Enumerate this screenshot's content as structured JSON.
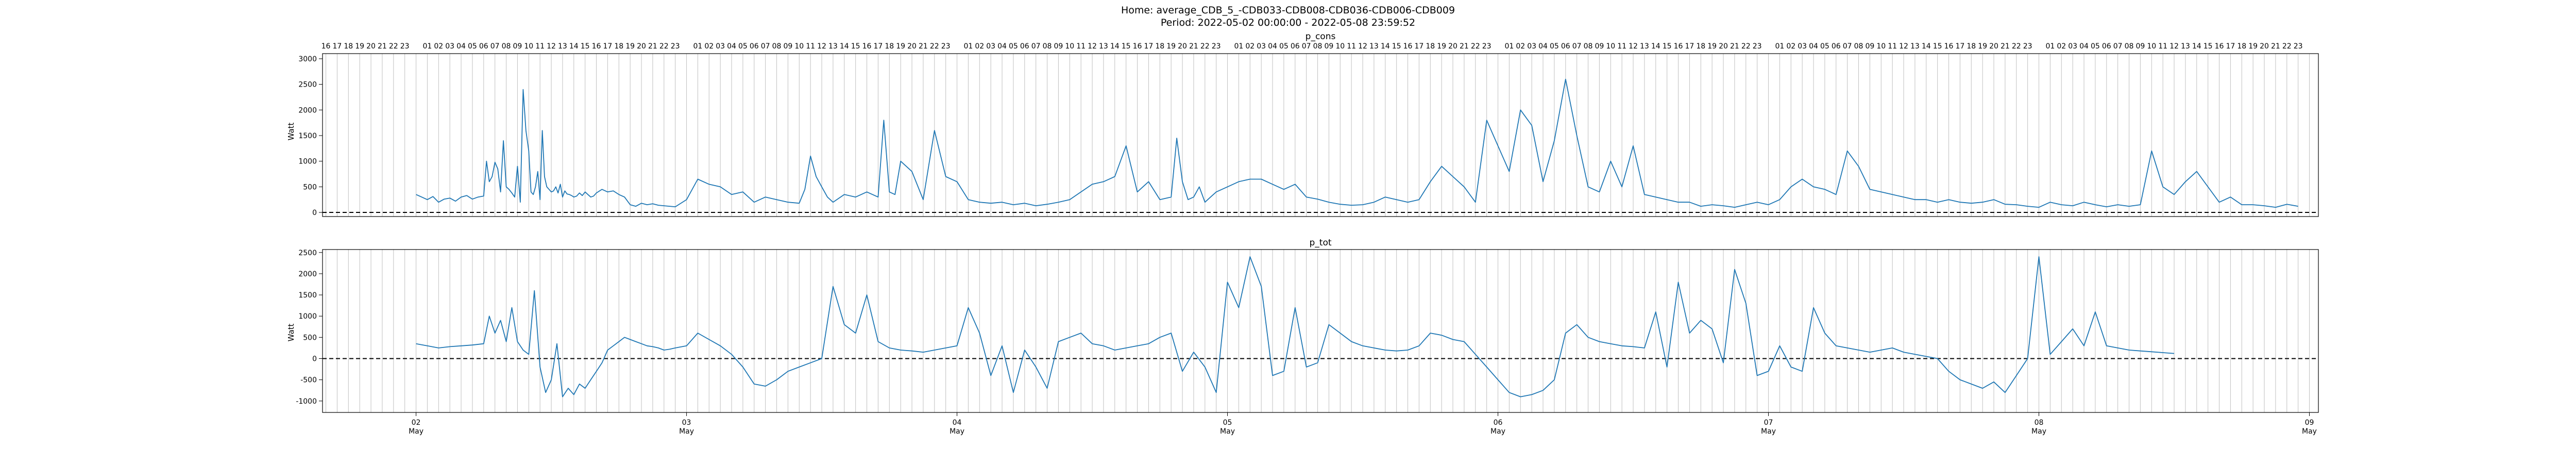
{
  "figure": {
    "title_line1": "Home: average_CDB_5_-CDB033-CDB008-CDB036-CDB006-CDB009",
    "title_line2": "Period: 2022-05-02 00:00:00 - 2022-05-08 23:59:52"
  },
  "chart_data": [
    {
      "type": "line",
      "title": "p_cons",
      "ylabel": "Watt",
      "ylim": [
        -80,
        3100
      ],
      "yticks": [
        0,
        500,
        1000,
        1500,
        2000,
        2500,
        3000
      ],
      "xlim": [
        -8.3,
        168.8
      ],
      "zero_line": true,
      "grid": "vertical hourly",
      "color": "#1f77b4",
      "x_hours": [
        0,
        0.5,
        1,
        1.5,
        2,
        2.5,
        3,
        3.5,
        4,
        4.5,
        5,
        5.5,
        6,
        6.25,
        6.5,
        6.75,
        7,
        7.25,
        7.5,
        7.75,
        8,
        8.25,
        8.5,
        8.75,
        9,
        9.25,
        9.5,
        9.75,
        10,
        10.2,
        10.4,
        10.6,
        10.8,
        11,
        11.2,
        11.4,
        11.6,
        11.8,
        12,
        12.2,
        12.4,
        12.6,
        12.8,
        13,
        13.2,
        13.4,
        13.6,
        13.8,
        14,
        14.25,
        14.5,
        14.75,
        15,
        15.25,
        15.5,
        15.75,
        16,
        16.5,
        17,
        17.5,
        18,
        18.5,
        19,
        19.5,
        20,
        20.5,
        21,
        21.5,
        22,
        22.5,
        23,
        24,
        25,
        26,
        27,
        28,
        29,
        30,
        31,
        32,
        33,
        34,
        34.5,
        35,
        35.5,
        36,
        36.5,
        37,
        38,
        39,
        40,
        41,
        41.5,
        42,
        42.5,
        43,
        44,
        45,
        46,
        47,
        48,
        49,
        50,
        51,
        52,
        53,
        54,
        55,
        56,
        57,
        58,
        59,
        60,
        61,
        62,
        63,
        64,
        65,
        66,
        67,
        67.5,
        68,
        68.5,
        69,
        69.5,
        70,
        70.5,
        71,
        72,
        73,
        74,
        75,
        76,
        77,
        78,
        79,
        80,
        81,
        82,
        83,
        84,
        85,
        86,
        87,
        88,
        89,
        90,
        91,
        92,
        93,
        94,
        95,
        96,
        97,
        98,
        99,
        100,
        101,
        102,
        103,
        104,
        105,
        106,
        107,
        108,
        109,
        110,
        111,
        112,
        113,
        114,
        115,
        116,
        117,
        118,
        119,
        120,
        121,
        122,
        123,
        124,
        125,
        126,
        127,
        128,
        129,
        130,
        131,
        132,
        133,
        134,
        135,
        136,
        137,
        138,
        139,
        140,
        141,
        142,
        143,
        144,
        145,
        146,
        147,
        148,
        149,
        150,
        151,
        152,
        153,
        154,
        155,
        156,
        157,
        158,
        159,
        160,
        161,
        162,
        163,
        164,
        165,
        166,
        167
      ],
      "p_cons": [
        350,
        300,
        250,
        310,
        200,
        260,
        280,
        220,
        300,
        330,
        260,
        300,
        320,
        1000,
        600,
        700,
        980,
        850,
        400,
        1400,
        500,
        450,
        380,
        300,
        900,
        200,
        2400,
        1600,
        1200,
        400,
        350,
        500,
        800,
        250,
        1600,
        700,
        500,
        450,
        400,
        420,
        500,
        380,
        550,
        300,
        420,
        360,
        350,
        330,
        300,
        320,
        380,
        330,
        400,
        350,
        300,
        320,
        380,
        450,
        400,
        420,
        350,
        300,
        150,
        120,
        180,
        150,
        170,
        140,
        130,
        120,
        110,
        250,
        650,
        550,
        500,
        350,
        400,
        200,
        300,
        250,
        200,
        180,
        450,
        1100,
        700,
        500,
        300,
        200,
        350,
        300,
        400,
        300,
        1800,
        400,
        350,
        1000,
        800,
        250,
        1600,
        700,
        600,
        250,
        200,
        180,
        200,
        150,
        180,
        130,
        160,
        200,
        250,
        400,
        550,
        600,
        700,
        1300,
        400,
        600,
        250,
        300,
        1450,
        600,
        250,
        300,
        500,
        200,
        300,
        400,
        500,
        600,
        650,
        650,
        550,
        450,
        550,
        300,
        260,
        200,
        160,
        140,
        150,
        200,
        300,
        250,
        200,
        250,
        600,
        900,
        700,
        500,
        200,
        1800,
        1300,
        800,
        2000,
        1700,
        600,
        1400,
        2600,
        1500,
        500,
        400,
        1000,
        500,
        1300,
        350,
        300,
        250,
        200,
        200,
        120,
        150,
        130,
        100,
        150,
        200,
        150,
        250,
        500,
        650,
        500,
        450,
        350,
        1200,
        900,
        450,
        400,
        350,
        300,
        250,
        250,
        200,
        250,
        200,
        180,
        200,
        250,
        160,
        150,
        120,
        100,
        200,
        150,
        130,
        200,
        150,
        110,
        150,
        120,
        150,
        1200,
        500,
        350,
        600,
        800,
        500,
        200,
        300,
        150,
        150,
        130,
        100,
        160,
        120,
        140
      ]
    },
    {
      "type": "line",
      "title": "p_tot",
      "ylabel": "Watt",
      "ylim": [
        -1270,
        2570
      ],
      "yticks": [
        -1000,
        -500,
        0,
        500,
        1000,
        1500,
        2000,
        2500
      ],
      "xlim": [
        -8.3,
        168.8
      ],
      "zero_line": true,
      "grid": "vertical hourly",
      "color": "#1f77b4",
      "x_hours": [
        0,
        1,
        2,
        3,
        4,
        5,
        6,
        6.5,
        7,
        7.5,
        8,
        8.5,
        9,
        9.5,
        10,
        10.5,
        11,
        11.5,
        12,
        12.5,
        13,
        13.5,
        14,
        14.5,
        15,
        15.5,
        16,
        16.5,
        17,
        17.5,
        18,
        18.5,
        19,
        19.5,
        20,
        20.5,
        21,
        21.5,
        22,
        22.5,
        23,
        24,
        25,
        26,
        27,
        28,
        29,
        30,
        31,
        32,
        33,
        34,
        35,
        36,
        37,
        38,
        39,
        40,
        41,
        42,
        43,
        44,
        45,
        46,
        47,
        48,
        49,
        50,
        51,
        52,
        53,
        54,
        55,
        56,
        57,
        58,
        59,
        60,
        61,
        62,
        63,
        64,
        65,
        66,
        67,
        68,
        69,
        70,
        71,
        72,
        73,
        74,
        75,
        76,
        77,
        78,
        79,
        80,
        81,
        82,
        83,
        84,
        85,
        86,
        87,
        88,
        89,
        90,
        91,
        92,
        93,
        94,
        95,
        96,
        97,
        98,
        99,
        100,
        101,
        102,
        103,
        104,
        105,
        106,
        107,
        108,
        109,
        110,
        111,
        112,
        113,
        114,
        115,
        116,
        117,
        118,
        119,
        120,
        121,
        122,
        123,
        124,
        125,
        126,
        127,
        128,
        129,
        130,
        131,
        132,
        133,
        134,
        135,
        136,
        137,
        138,
        139,
        140,
        141,
        142,
        143,
        144,
        145,
        146,
        147,
        148,
        149,
        150,
        151,
        152,
        153,
        154,
        155,
        156,
        157,
        158,
        159,
        160,
        161,
        162,
        163,
        164,
        165,
        166,
        167
      ],
      "p_tot": [
        350,
        300,
        250,
        280,
        300,
        320,
        350,
        1000,
        600,
        900,
        400,
        1200,
        400,
        200,
        100,
        1600,
        -200,
        -800,
        -500,
        350,
        -900,
        -700,
        -850,
        -600,
        -700,
        -500,
        -300,
        -100,
        200,
        300,
        400,
        500,
        450,
        400,
        350,
        300,
        280,
        250,
        200,
        220,
        250,
        300,
        600,
        450,
        300,
        100,
        -200,
        -600,
        -650,
        -500,
        -300,
        -200,
        -100,
        0,
        1700,
        800,
        600,
        1500,
        400,
        250,
        200,
        180,
        150,
        200,
        250,
        300,
        1200,
        600,
        -400,
        300,
        -800,
        200,
        -200,
        -700,
        400,
        500,
        600,
        350,
        300,
        200,
        250,
        300,
        350,
        500,
        600,
        -300,
        150,
        -200,
        -800,
        1800,
        1200,
        2400,
        1700,
        -400,
        -300,
        1200,
        -200,
        -100,
        800,
        600,
        400,
        300,
        250,
        200,
        180,
        200,
        300,
        600,
        550,
        450,
        400,
        100,
        -200,
        -500,
        -800,
        -900,
        -850,
        -750,
        -500,
        600,
        800,
        500,
        400,
        350,
        300,
        280,
        250,
        1100,
        -200,
        1800,
        600,
        900,
        700,
        -100,
        2100,
        1300,
        -400,
        -300,
        300,
        -200,
        -300,
        1200,
        600,
        300,
        250,
        200,
        150,
        200,
        250,
        150,
        100,
        50,
        0,
        -300,
        -500,
        -600,
        -700,
        -550,
        -800,
        -400,
        0,
        2400,
        100,
        400,
        700,
        300,
        1100,
        300,
        250,
        200,
        180,
        160,
        140,
        120
      ]
    }
  ],
  "x_axis": {
    "day_ticks": [
      {
        "day": "02",
        "month": "May"
      },
      {
        "day": "03",
        "month": "May"
      },
      {
        "day": "04",
        "month": "May"
      },
      {
        "day": "05",
        "month": "May"
      },
      {
        "day": "06",
        "month": "May"
      },
      {
        "day": "07",
        "month": "May"
      },
      {
        "day": "08",
        "month": "May"
      },
      {
        "day": "09",
        "month": "May"
      }
    ],
    "top_hour_labels": [
      "01",
      "02",
      "03",
      "04",
      "05",
      "06",
      "07",
      "08",
      "09",
      "10",
      "11",
      "12",
      "13",
      "14",
      "15",
      "16",
      "17",
      "18",
      "19",
      "20",
      "21",
      "22",
      "23"
    ],
    "pre_start_hour_labels": [
      "16",
      "17",
      "18",
      "19",
      "20",
      "21",
      "22",
      "23"
    ]
  }
}
